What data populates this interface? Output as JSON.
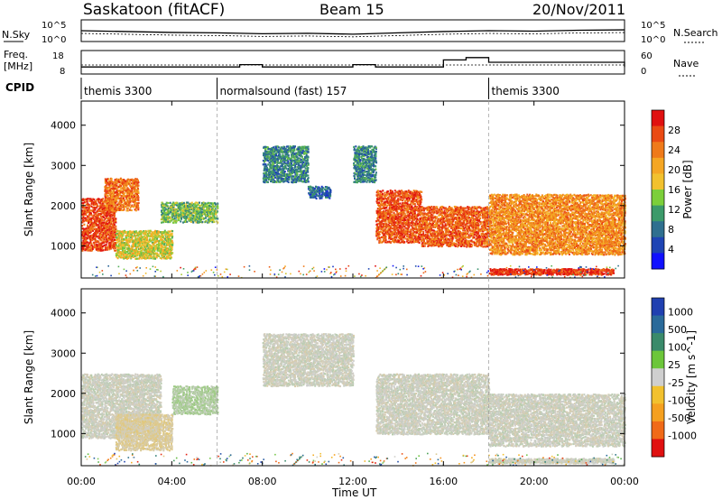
{
  "header": {
    "station": "Saskatoon (fitACF)",
    "beam": "Beam 15",
    "date": "20/Nov/2011"
  },
  "noise_panel": {
    "left_label": "N.Sky",
    "right_label": "N.Search",
    "left_ticks": [
      "10^5",
      "10^0"
    ],
    "right_ticks": [
      "10^5",
      "10^0"
    ]
  },
  "freq_panel": {
    "left_label_line1": "Freq.",
    "left_label_line2": "[MHz]",
    "left_ticks": [
      "18",
      "8"
    ],
    "right_label": "Nave",
    "right_ticks": [
      "60",
      "0"
    ]
  },
  "cpid_panel": {
    "label": "CPID",
    "segments": [
      {
        "start_hour": 0,
        "end_hour": 6,
        "name": "themis 3300"
      },
      {
        "start_hour": 6,
        "end_hour": 18,
        "name": "normalsound (fast) 157"
      },
      {
        "start_hour": 18,
        "end_hour": 24,
        "name": "themis 3300"
      }
    ]
  },
  "x_axis": {
    "label": "Time UT",
    "range_hours": [
      0,
      24
    ],
    "ticks": [
      "00:00",
      "04:00",
      "08:00",
      "12:00",
      "16:00",
      "20:00",
      "00:00"
    ]
  },
  "power_panel": {
    "ylabel": "Slant Range [km]",
    "yticks": [
      "1000",
      "2000",
      "3000",
      "4000"
    ],
    "colorbar_label": "Power [dB]",
    "colorbar_ticks": [
      "4",
      "8",
      "12",
      "16",
      "20",
      "24",
      "28"
    ],
    "colorbar_colors": [
      "#1010ff",
      "#1e44b4",
      "#2f6f8f",
      "#3c9a6a",
      "#7ccf3a",
      "#f2c12e",
      "#f5a623",
      "#ef7a1a",
      "#ea4a14",
      "#e01010"
    ]
  },
  "velocity_panel": {
    "ylabel": "Slant Range [km]",
    "yticks": [
      "1000",
      "2000",
      "3000",
      "4000"
    ],
    "colorbar_label": "Velocity [m s^-1]",
    "colorbar_ticks": [
      "1000",
      "500",
      "100",
      "25",
      "-25",
      "-100",
      "-500",
      "-1000"
    ],
    "colorbar_colors": [
      "#2040b0",
      "#2a6a9a",
      "#3a8a6a",
      "#6cc63a",
      "#cfcfcf",
      "#f2c12e",
      "#f5a020",
      "#f06a18",
      "#e01010"
    ]
  },
  "chart_data": [
    {
      "type": "line",
      "title": "Saskatoon (fitACF) Beam 15 20/Nov/2011",
      "xlabel": "Time UT",
      "xlim": [
        0,
        24
      ],
      "series": [
        {
          "name": "N.Sky",
          "x": [
            0,
            2,
            4,
            6,
            8,
            10,
            12,
            14,
            16,
            18,
            20,
            22,
            24
          ],
          "y": [
            2.5,
            2.3,
            2.1,
            2.0,
            1.8,
            1.9,
            1.7,
            2.0,
            2.3,
            2.5,
            2.4,
            2.6,
            2.7
          ]
        },
        {
          "name": "Freq.",
          "x": [
            0,
            6,
            7,
            8,
            11,
            12,
            13,
            15,
            16,
            17,
            18,
            24
          ],
          "y": [
            11,
            11,
            12,
            11,
            11,
            12,
            11,
            11,
            14,
            15,
            13,
            11
          ]
        }
      ]
    },
    {
      "type": "heatmap",
      "title": "Power",
      "xlabel": "Time UT",
      "ylabel": "Slant Range [km]",
      "xlim": [
        0,
        24
      ],
      "ylim": [
        200,
        4600
      ],
      "colorbar": {
        "label": "Power [dB]",
        "range": [
          0,
          30
        ]
      },
      "regions": [
        {
          "t_start": 0.0,
          "t_end": 1.5,
          "range_start": 900,
          "range_end": 2200,
          "value": 27
        },
        {
          "t_start": 1.0,
          "t_end": 2.5,
          "range_start": 1900,
          "range_end": 2700,
          "value": 24
        },
        {
          "t_start": 1.5,
          "t_end": 4.0,
          "range_start": 700,
          "range_end": 1400,
          "value": 16
        },
        {
          "t_start": 3.5,
          "t_end": 6.0,
          "range_start": 1600,
          "range_end": 2100,
          "value": 12
        },
        {
          "t_start": 8.0,
          "t_end": 10.0,
          "range_start": 2600,
          "range_end": 3500,
          "value": 8
        },
        {
          "t_start": 10.0,
          "t_end": 11.0,
          "range_start": 2200,
          "range_end": 2500,
          "value": 6
        },
        {
          "t_start": 12.0,
          "t_end": 13.0,
          "range_start": 2600,
          "range_end": 3500,
          "value": 8
        },
        {
          "t_start": 13.0,
          "t_end": 15.0,
          "range_start": 1100,
          "range_end": 2400,
          "value": 26
        },
        {
          "t_start": 15.0,
          "t_end": 18.0,
          "range_start": 1000,
          "range_end": 2000,
          "value": 25
        },
        {
          "t_start": 18.0,
          "t_end": 24.0,
          "range_start": 800,
          "range_end": 2300,
          "value": 22
        },
        {
          "t_start": 18.0,
          "t_end": 23.5,
          "range_start": 300,
          "range_end": 450,
          "value": 28
        }
      ]
    },
    {
      "type": "heatmap",
      "title": "Velocity",
      "xlabel": "Time UT",
      "ylabel": "Slant Range [km]",
      "xlim": [
        0,
        24
      ],
      "ylim": [
        200,
        4600
      ],
      "colorbar": {
        "label": "Velocity [m s^-1]",
        "range": [
          -1000,
          1000
        ]
      },
      "regions": [
        {
          "t_start": 0.0,
          "t_end": 3.5,
          "range_start": 900,
          "range_end": 2500,
          "value": 0
        },
        {
          "t_start": 1.5,
          "t_end": 4.0,
          "range_start": 600,
          "range_end": 1500,
          "value": -80
        },
        {
          "t_start": 4.0,
          "t_end": 6.0,
          "range_start": 1500,
          "range_end": 2200,
          "value": 80
        },
        {
          "t_start": 8.0,
          "t_end": 12.0,
          "range_start": 2200,
          "range_end": 3500,
          "value": 0
        },
        {
          "t_start": 13.0,
          "t_end": 18.0,
          "range_start": 1000,
          "range_end": 2500,
          "value": 0
        },
        {
          "t_start": 18.0,
          "t_end": 24.0,
          "range_start": 700,
          "range_end": 2000,
          "value": 0
        },
        {
          "t_start": 18.0,
          "t_end": 23.5,
          "range_start": 280,
          "range_end": 400,
          "value": 0
        }
      ]
    }
  ]
}
